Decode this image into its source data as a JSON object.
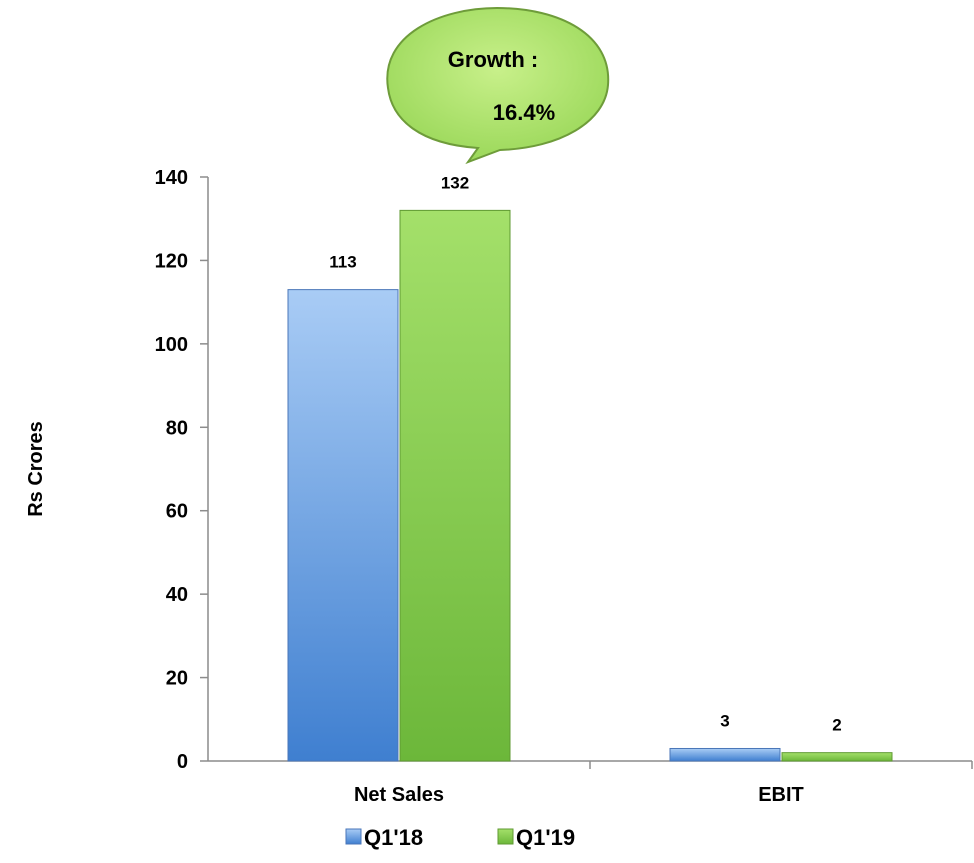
{
  "chart_data": {
    "type": "bar",
    "title": "",
    "xlabel": "",
    "ylabel": "Rs Crores",
    "categories": [
      "Net Sales",
      "EBIT"
    ],
    "series": [
      {
        "name": "Q1'18",
        "values": [
          113,
          3
        ],
        "color": "#5b8fd6"
      },
      {
        "name": "Q1'19",
        "values": [
          132,
          2
        ],
        "color": "#7dc243"
      }
    ],
    "data_labels": [
      [
        "113",
        "3"
      ],
      [
        "132",
        "2"
      ]
    ],
    "ylim": [
      0,
      140
    ],
    "yticks": [
      0,
      20,
      40,
      60,
      80,
      100,
      120,
      140
    ],
    "grid": false,
    "legend": "bottom",
    "annotation": {
      "line1": "Growth :",
      "line2": "16.4%",
      "fill": "#aee36a",
      "target_category": "Net Sales"
    }
  }
}
